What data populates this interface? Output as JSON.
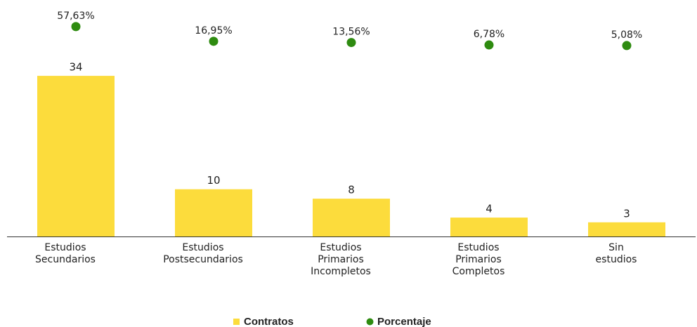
{
  "chart_data": {
    "type": "bar",
    "categories": [
      "Estudios Secundarios",
      "Estudios Postsecundarios",
      "Estudios Primarios Incompletos",
      "Estudios Primarios Completos",
      "Sin estudios"
    ],
    "ylim": [
      0,
      45.6
    ],
    "y2lim": [
      -524,
      73
    ],
    "series": [
      {
        "name": "Contratos",
        "type": "bar",
        "color": "#fcdc3c",
        "values": [
          34,
          10,
          8,
          4,
          3
        ]
      },
      {
        "name": "Porcentaje",
        "type": "scatter",
        "axis": "y2",
        "color": "#2e8b10",
        "values": [
          57.63,
          16.95,
          13.56,
          6.78,
          5.08
        ],
        "value_labels": [
          "57,63%",
          "16,95%",
          "13,56%",
          "6,78%",
          "5,08%"
        ]
      }
    ]
  }
}
